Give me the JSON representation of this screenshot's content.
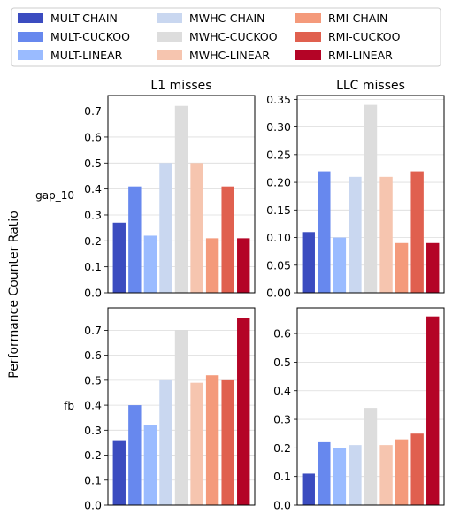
{
  "figure": {
    "ylabel": "Performance Counter Ratio",
    "col_titles": [
      "L1 misses",
      "LLC misses"
    ],
    "row_labels": [
      "gap_10",
      "fb"
    ]
  },
  "legend": {
    "placement": "top",
    "entries": [
      {
        "label": "MULT-CHAIN",
        "color": "#3b4cc0"
      },
      {
        "label": "MULT-CUCKOO",
        "color": "#6788ee"
      },
      {
        "label": "MULT-LINEAR",
        "color": "#9abbff"
      },
      {
        "label": "MWHC-CHAIN",
        "color": "#c9d7f0"
      },
      {
        "label": "MWHC-CUCKOO",
        "color": "#dddddd"
      },
      {
        "label": "MWHC-LINEAR",
        "color": "#f6c5af"
      },
      {
        "label": "RMI-CHAIN",
        "color": "#f49a7b"
      },
      {
        "label": "RMI-CUCKOO",
        "color": "#e0604f"
      },
      {
        "label": "RMI-LINEAR",
        "color": "#b40426"
      }
    ]
  },
  "chart_data": [
    {
      "type": "bar",
      "row": "gap_10",
      "column": "L1 misses",
      "categories": [
        "MULT-CHAIN",
        "MULT-CUCKOO",
        "MULT-LINEAR",
        "MWHC-CHAIN",
        "MWHC-CUCKOO",
        "MWHC-LINEAR",
        "RMI-CHAIN",
        "RMI-CUCKOO",
        "RMI-LINEAR"
      ],
      "values": [
        0.27,
        0.41,
        0.22,
        0.5,
        0.72,
        0.5,
        0.21,
        0.41,
        0.21
      ],
      "ylim": [
        0,
        0.76
      ],
      "yticks": [
        "0.0",
        "0.1",
        "0.2",
        "0.3",
        "0.4",
        "0.5",
        "0.6",
        "0.7"
      ],
      "grid": true
    },
    {
      "type": "bar",
      "row": "gap_10",
      "column": "LLC misses",
      "categories": [
        "MULT-CHAIN",
        "MULT-CUCKOO",
        "MULT-LINEAR",
        "MWHC-CHAIN",
        "MWHC-CUCKOO",
        "MWHC-LINEAR",
        "RMI-CHAIN",
        "RMI-CUCKOO",
        "RMI-LINEAR"
      ],
      "values": [
        0.11,
        0.22,
        0.1,
        0.21,
        0.34,
        0.21,
        0.09,
        0.22,
        0.09
      ],
      "ylim": [
        0,
        0.357
      ],
      "yticks": [
        "0.00",
        "0.05",
        "0.10",
        "0.15",
        "0.20",
        "0.25",
        "0.30",
        "0.35"
      ],
      "grid": true
    },
    {
      "type": "bar",
      "row": "fb",
      "column": "L1 misses",
      "categories": [
        "MULT-CHAIN",
        "MULT-CUCKOO",
        "MULT-LINEAR",
        "MWHC-CHAIN",
        "MWHC-CUCKOO",
        "MWHC-LINEAR",
        "RMI-CHAIN",
        "RMI-CUCKOO",
        "RMI-LINEAR"
      ],
      "values": [
        0.26,
        0.4,
        0.32,
        0.5,
        0.7,
        0.49,
        0.52,
        0.5,
        0.75
      ],
      "ylim": [
        0,
        0.79
      ],
      "yticks": [
        "0.0",
        "0.1",
        "0.2",
        "0.3",
        "0.4",
        "0.5",
        "0.6",
        "0.7"
      ],
      "grid": true
    },
    {
      "type": "bar",
      "row": "fb",
      "column": "LLC misses",
      "categories": [
        "MULT-CHAIN",
        "MULT-CUCKOO",
        "MULT-LINEAR",
        "MWHC-CHAIN",
        "MWHC-CUCKOO",
        "MWHC-LINEAR",
        "RMI-CHAIN",
        "RMI-CUCKOO",
        "RMI-LINEAR"
      ],
      "values": [
        0.11,
        0.22,
        0.2,
        0.21,
        0.34,
        0.21,
        0.23,
        0.25,
        0.66
      ],
      "ylim": [
        0,
        0.69
      ],
      "yticks": [
        "0.0",
        "0.1",
        "0.2",
        "0.3",
        "0.4",
        "0.5",
        "0.6"
      ],
      "grid": true
    }
  ]
}
